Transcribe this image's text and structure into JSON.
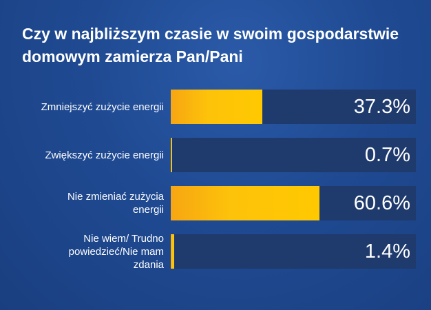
{
  "chart_data": {
    "type": "bar",
    "orientation": "horizontal",
    "title": "Czy w najbliższym czasie w swoim gospodarstwie domowym zamierza Pan/Pani",
    "categories": [
      "Zmniejszyć zużycie energii",
      "Zwiększyć zużycie energii",
      "Nie zmieniać zużycia energii",
      "Nie wiem/ Trudno powiedzieć/Nie mam zdania"
    ],
    "values": [
      37.3,
      0.7,
      60.6,
      1.4
    ],
    "value_labels": [
      "37.3%",
      "0.7%",
      "60.6%",
      "1.4%"
    ],
    "xlim": [
      0,
      100
    ],
    "unit": "%",
    "grid": false,
    "legend": "none",
    "colors": {
      "bar": "#ffc400",
      "bar_start": "#f7a612",
      "track": "#1f3a6d",
      "background": "#1f4a92",
      "text": "#ffffff"
    }
  }
}
